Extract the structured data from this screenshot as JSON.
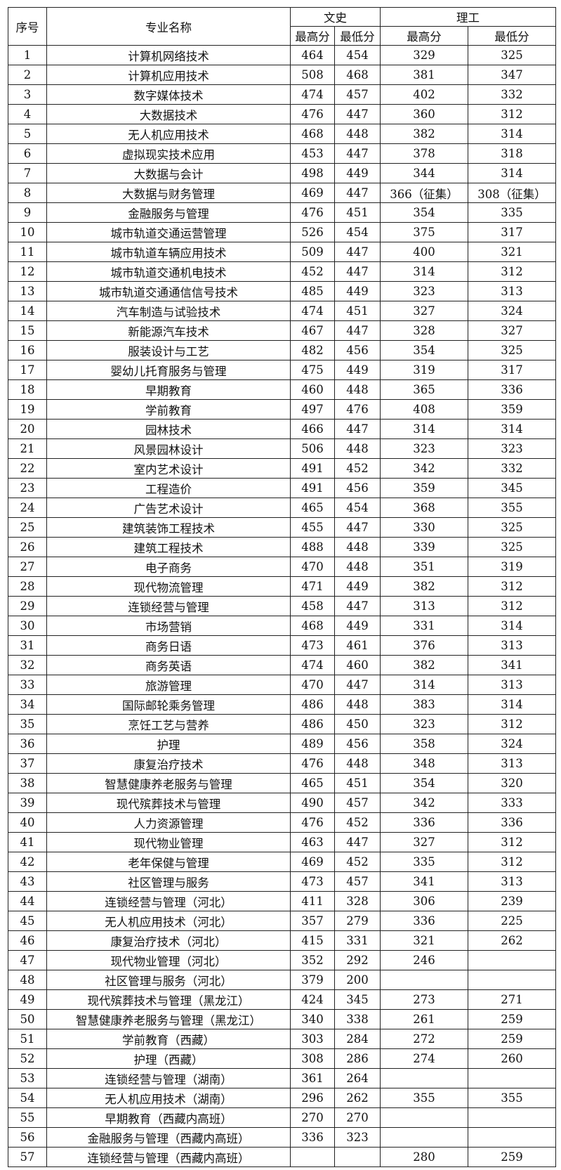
{
  "table": {
    "header": {
      "index": "序号",
      "name": "专业名称",
      "group_a": "文史",
      "group_b": "理工",
      "a_max": "最高分",
      "a_min": "最低分",
      "b_max": "最高分",
      "b_min": "最低分"
    },
    "rows": [
      [
        1,
        "计算机网络技术",
        464,
        454,
        329,
        325
      ],
      [
        2,
        "计算机应用技术",
        508,
        468,
        381,
        347
      ],
      [
        3,
        "数字媒体技术",
        474,
        457,
        402,
        332
      ],
      [
        4,
        "大数据技术",
        476,
        447,
        360,
        312
      ],
      [
        5,
        "无人机应用技术",
        468,
        448,
        382,
        314
      ],
      [
        6,
        "虚拟现实技术应用",
        453,
        447,
        378,
        318
      ],
      [
        7,
        "大数据与会计",
        498,
        449,
        344,
        314
      ],
      [
        8,
        "大数据与财务管理",
        469,
        447,
        "366（征集）",
        "308（征集）"
      ],
      [
        9,
        "金融服务与管理",
        476,
        451,
        354,
        335
      ],
      [
        10,
        "城市轨道交通运营管理",
        526,
        454,
        375,
        317
      ],
      [
        11,
        "城市轨道车辆应用技术",
        509,
        447,
        400,
        321
      ],
      [
        12,
        "城市轨道交通机电技术",
        452,
        447,
        314,
        312
      ],
      [
        13,
        "城市轨道交通通信信号技术",
        485,
        449,
        323,
        313
      ],
      [
        14,
        "汽车制造与试验技术",
        474,
        451,
        327,
        324
      ],
      [
        15,
        "新能源汽车技术",
        467,
        447,
        328,
        327
      ],
      [
        16,
        "服装设计与工艺",
        482,
        456,
        354,
        325
      ],
      [
        17,
        "婴幼儿托育服务与管理",
        475,
        449,
        319,
        317
      ],
      [
        18,
        "早期教育",
        460,
        448,
        365,
        336
      ],
      [
        19,
        "学前教育",
        497,
        476,
        408,
        359
      ],
      [
        20,
        "园林技术",
        466,
        447,
        314,
        314
      ],
      [
        21,
        "风景园林设计",
        506,
        448,
        323,
        323
      ],
      [
        22,
        "室内艺术设计",
        491,
        452,
        342,
        332
      ],
      [
        23,
        "工程造价",
        491,
        456,
        359,
        345
      ],
      [
        24,
        "广告艺术设计",
        465,
        454,
        368,
        355
      ],
      [
        25,
        "建筑装饰工程技术",
        455,
        447,
        330,
        325
      ],
      [
        26,
        "建筑工程技术",
        488,
        448,
        339,
        325
      ],
      [
        27,
        "电子商务",
        470,
        448,
        351,
        319
      ],
      [
        28,
        "现代物流管理",
        471,
        449,
        382,
        312
      ],
      [
        29,
        "连锁经营与管理",
        458,
        447,
        313,
        312
      ],
      [
        30,
        "市场营销",
        468,
        449,
        331,
        314
      ],
      [
        31,
        "商务日语",
        473,
        461,
        376,
        313
      ],
      [
        32,
        "商务英语",
        474,
        460,
        382,
        341
      ],
      [
        33,
        "旅游管理",
        470,
        447,
        314,
        313
      ],
      [
        34,
        "国际邮轮乘务管理",
        486,
        448,
        383,
        314
      ],
      [
        35,
        "烹饪工艺与营养",
        486,
        450,
        323,
        312
      ],
      [
        36,
        "护理",
        489,
        456,
        358,
        324
      ],
      [
        37,
        "康复治疗技术",
        476,
        448,
        348,
        313
      ],
      [
        38,
        "智慧健康养老服务与管理",
        465,
        451,
        354,
        320
      ],
      [
        39,
        "现代殡葬技术与管理",
        490,
        457,
        342,
        333
      ],
      [
        40,
        "人力资源管理",
        476,
        452,
        336,
        336
      ],
      [
        41,
        "现代物业管理",
        463,
        447,
        327,
        312
      ],
      [
        42,
        "老年保健与管理",
        469,
        452,
        335,
        312
      ],
      [
        43,
        "社区管理与服务",
        473,
        457,
        341,
        313
      ],
      [
        44,
        "连锁经营与管理（河北）",
        411,
        328,
        306,
        239
      ],
      [
        45,
        "无人机应用技术（河北）",
        357,
        279,
        336,
        225
      ],
      [
        46,
        "康复治疗技术（河北）",
        415,
        331,
        321,
        262
      ],
      [
        47,
        "现代物业管理（河北）",
        352,
        292,
        246,
        null
      ],
      [
        48,
        "社区管理与服务（河北）",
        379,
        200,
        null,
        null
      ],
      [
        49,
        "现代殡葬技术与管理（黑龙江）",
        424,
        345,
        273,
        271
      ],
      [
        50,
        "智慧健康养老服务与管理（黑龙江）",
        340,
        338,
        261,
        259
      ],
      [
        51,
        "学前教育（西藏）",
        303,
        284,
        272,
        259
      ],
      [
        52,
        "护理（西藏）",
        308,
        286,
        274,
        260
      ],
      [
        53,
        "连锁经营与管理（湖南）",
        361,
        264,
        null,
        null
      ],
      [
        54,
        "无人机应用技术（湖南）",
        296,
        262,
        355,
        355
      ],
      [
        55,
        "早期教育（西藏内高班）",
        270,
        270,
        null,
        null
      ],
      [
        56,
        "金融服务与管理（西藏内高班）",
        336,
        323,
        null,
        null
      ],
      [
        57,
        "连锁经营与管理（西藏内高班）",
        null,
        null,
        280,
        259
      ]
    ]
  }
}
